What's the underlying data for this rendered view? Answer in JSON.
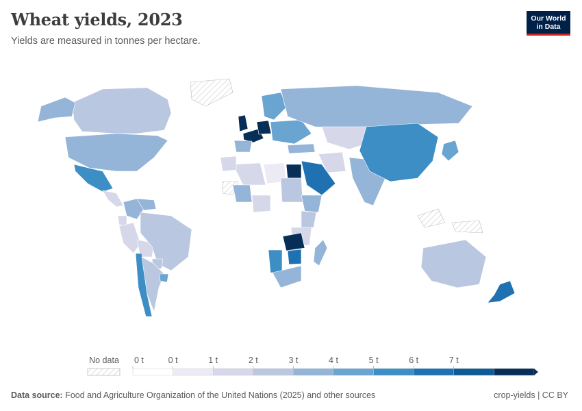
{
  "header": {
    "title": "Wheat yields, 2023",
    "subtitle": "Yields are measured in tonnes per hectare."
  },
  "logo": {
    "line1": "Our World",
    "line2": "in Data"
  },
  "legend": {
    "no_data_label": "No data",
    "tick_labels": [
      "0 t",
      "0 t",
      "1 t",
      "2 t",
      "3 t",
      "4 t",
      "5 t",
      "6 t",
      "7 t"
    ],
    "colors": [
      "#ffffff",
      "#ecebf5",
      "#d6d8ea",
      "#b9c7e0",
      "#94b4d8",
      "#6aa4d1",
      "#3c8ec4",
      "#1f71b2",
      "#0d5a95",
      "#062e57"
    ]
  },
  "footer": {
    "source_label": "Data source:",
    "source_text": "Food and Agriculture Organization of the United Nations (2025) and other sources",
    "credit": "crop-yields | CC BY"
  },
  "chart_data": {
    "type": "choropleth",
    "unit": "tonnes per hectare",
    "regions": [
      {
        "name": "Canada",
        "value": 2.5
      },
      {
        "name": "Alaska",
        "value": 3.5
      },
      {
        "name": "United States",
        "value": 3.3
      },
      {
        "name": "Mexico",
        "value": 5.7
      },
      {
        "name": "Central America",
        "value": 1.5
      },
      {
        "name": "Colombia",
        "value": 3.3
      },
      {
        "name": "Venezuela",
        "value": 3.3
      },
      {
        "name": "Ecuador",
        "value": 1.2
      },
      {
        "name": "Peru",
        "value": 1.5
      },
      {
        "name": "Bolivia",
        "value": 1.5
      },
      {
        "name": "Brazil",
        "value": 2.8
      },
      {
        "name": "Paraguay",
        "value": 2.8
      },
      {
        "name": "Chile",
        "value": 5.3
      },
      {
        "name": "Argentina",
        "value": 2.8
      },
      {
        "name": "Uruguay",
        "value": 4.9
      },
      {
        "name": "United Kingdom",
        "value": 7.8
      },
      {
        "name": "France",
        "value": 7.1
      },
      {
        "name": "Germany",
        "value": 7.4
      },
      {
        "name": "Iberia",
        "value": 3.3
      },
      {
        "name": "Scandinavia",
        "value": 4.9
      },
      {
        "name": "Eastern Europe",
        "value": 4.5
      },
      {
        "name": "Russia",
        "value": 3.1
      },
      {
        "name": "Kazakhstan",
        "value": 1.2
      },
      {
        "name": "Mongolia",
        "value": 1.8
      },
      {
        "name": "Turkey",
        "value": 3.0
      },
      {
        "name": "Iran",
        "value": 1.8
      },
      {
        "name": "Saudi Arabia",
        "value": 6.0
      },
      {
        "name": "Egypt",
        "value": 7.5
      },
      {
        "name": "Libya",
        "value": 0.3
      },
      {
        "name": "Algeria",
        "value": 1.5
      },
      {
        "name": "Morocco",
        "value": 1.5
      },
      {
        "name": "Mali",
        "value": 3.8
      },
      {
        "name": "Nigeria",
        "value": 1.5
      },
      {
        "name": "Sudan",
        "value": 2.5
      },
      {
        "name": "Ethiopia",
        "value": 3.0
      },
      {
        "name": "Kenya",
        "value": 2.5
      },
      {
        "name": "Tanzania",
        "value": 1.5
      },
      {
        "name": "Zambia",
        "value": 7.1
      },
      {
        "name": "Zimbabwe",
        "value": 6.0
      },
      {
        "name": "Namibia",
        "value": 5.1
      },
      {
        "name": "South Africa",
        "value": 3.6
      },
      {
        "name": "Madagascar",
        "value": 3.0
      },
      {
        "name": "India",
        "value": 3.5
      },
      {
        "name": "China",
        "value": 5.8
      },
      {
        "name": "Japan",
        "value": 4.5
      },
      {
        "name": "Australia",
        "value": 2.8
      },
      {
        "name": "New Zealand",
        "value": 6.8
      }
    ]
  }
}
